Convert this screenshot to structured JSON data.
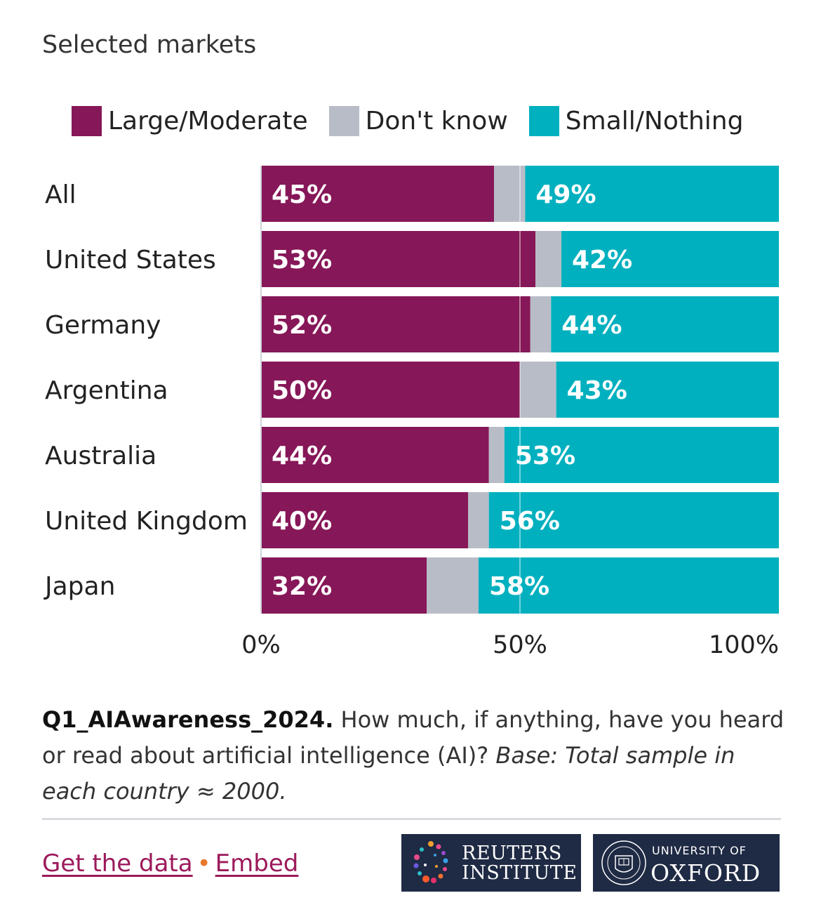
{
  "subtitle": "Selected markets",
  "legend": [
    {
      "label": "Large/Moderate",
      "color": "#861758"
    },
    {
      "label": "Don't know",
      "color": "#b8bcc6"
    },
    {
      "label": "Small/Nothing",
      "color": "#00b0bf"
    }
  ],
  "chart_data": {
    "type": "bar",
    "orientation": "horizontal",
    "stacked": true,
    "categories": [
      "All",
      "United States",
      "Germany",
      "Argentina",
      "Australia",
      "United Kingdom",
      "Japan"
    ],
    "series": [
      {
        "name": "Large/Moderate",
        "color": "#861758",
        "values": [
          45,
          53,
          52,
          50,
          44,
          40,
          32
        ]
      },
      {
        "name": "Don't know",
        "color": "#b8bcc6",
        "values": [
          6,
          5,
          4,
          7,
          3,
          4,
          10
        ]
      },
      {
        "name": "Small/Nothing",
        "color": "#00b0bf",
        "values": [
          49,
          42,
          44,
          43,
          53,
          56,
          58
        ]
      }
    ],
    "data_labels": {
      "Large/Moderate": [
        "45%",
        "53%",
        "52%",
        "50%",
        "44%",
        "40%",
        "32%"
      ],
      "Small/Nothing": [
        "49%",
        "42%",
        "44%",
        "43%",
        "53%",
        "56%",
        "58%"
      ]
    },
    "xlim": [
      0,
      100
    ],
    "xticks": [
      0,
      50,
      100
    ],
    "xtick_labels": [
      "0%",
      "50%",
      "100%"
    ],
    "reference_line": 50
  },
  "note": {
    "code": "Q1_AIAwareness_2024.",
    "question": " How much, if anything, have you heard or read about artificial intelligence (AI)? ",
    "base": "Base: Total sample in each country ≈ 2000."
  },
  "footer": {
    "get_data": "Get the data",
    "separator": "•",
    "embed": "Embed",
    "reuters_line1": "REUTERS",
    "reuters_line2": "INSTITUTE",
    "oxford_line1": "UNIVERSITY OF",
    "oxford_line2": "OXFORD"
  }
}
